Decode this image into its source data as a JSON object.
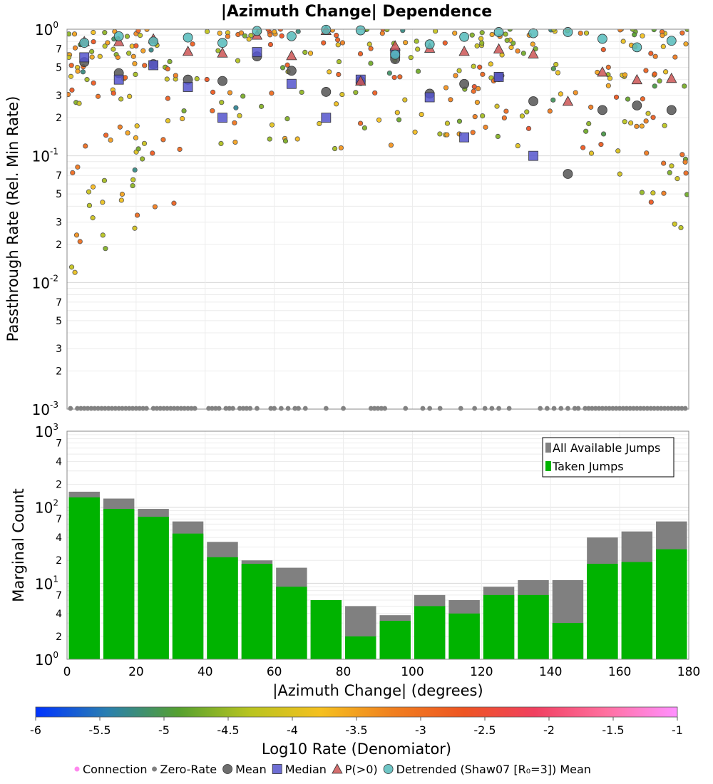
{
  "chart_data": {
    "title": "|Azimuth Change| Dependence",
    "xlabel": "|Azimuth Change| (degrees)",
    "xlim": [
      0,
      180
    ],
    "x_ticks": [
      0,
      20,
      40,
      60,
      80,
      100,
      120,
      140,
      160,
      180
    ],
    "top_panel": {
      "type": "scatter",
      "ylabel": "Passthrough Rate (Rel. Min Rate)",
      "yscale": "log",
      "ylim": [
        0.001,
        1
      ],
      "grid": true,
      "major_tick_labels": [
        {
          "base": "10",
          "exp": "-3"
        },
        {
          "base": "10",
          "exp": "-2"
        },
        {
          "base": "10",
          "exp": "-1"
        },
        {
          "base": "10",
          "exp": "0"
        }
      ],
      "minor_tick_labels": [
        "2",
        "3",
        "5",
        "7"
      ],
      "series": [
        {
          "name": "Mean",
          "color": "#555555",
          "points": [
            [
              5,
              0.55
            ],
            [
              15,
              0.45
            ],
            [
              25,
              0.53
            ],
            [
              35,
              0.4
            ],
            [
              45,
              0.39
            ],
            [
              55,
              0.61
            ],
            [
              65,
              0.47
            ],
            [
              75,
              0.32
            ],
            [
              85,
              0.39
            ],
            [
              95,
              0.58
            ],
            [
              105,
              0.31
            ],
            [
              115,
              0.37
            ],
            [
              125,
              0.42
            ],
            [
              135,
              0.27
            ],
            [
              145,
              0.072
            ],
            [
              155,
              0.23
            ],
            [
              165,
              0.25
            ],
            [
              175,
              0.23
            ]
          ]
        },
        {
          "name": "Median",
          "color": "#5555cc",
          "points": [
            [
              5,
              0.6
            ],
            [
              15,
              0.4
            ],
            [
              25,
              0.52
            ],
            [
              35,
              0.35
            ],
            [
              45,
              0.2
            ],
            [
              55,
              0.66
            ],
            [
              65,
              0.37
            ],
            [
              75,
              0.2
            ],
            [
              85,
              0.4
            ],
            [
              95,
              0.65
            ],
            [
              105,
              0.29
            ],
            [
              115,
              0.14
            ],
            [
              125,
              0.42
            ],
            [
              135,
              0.1
            ]
          ]
        },
        {
          "name": "P(>0)",
          "color": "#cc5555",
          "points": [
            [
              5,
              0.8
            ],
            [
              15,
              0.8
            ],
            [
              25,
              0.84
            ],
            [
              35,
              0.67
            ],
            [
              45,
              0.65
            ],
            [
              55,
              0.9
            ],
            [
              65,
              0.62
            ],
            [
              75,
              0.98
            ],
            [
              85,
              0.39
            ],
            [
              95,
              0.74
            ],
            [
              105,
              0.71
            ],
            [
              115,
              0.67
            ],
            [
              125,
              0.7
            ],
            [
              135,
              0.64
            ],
            [
              145,
              0.27
            ],
            [
              155,
              0.46
            ],
            [
              165,
              0.4
            ],
            [
              175,
              0.41
            ]
          ]
        },
        {
          "name": "Detrended (Shaw07 [R₀=3]) Mean",
          "color": "#55bbbb",
          "points": [
            [
              5,
              0.78
            ],
            [
              15,
              0.88
            ],
            [
              25,
              0.8
            ],
            [
              35,
              0.86
            ],
            [
              45,
              0.78
            ],
            [
              55,
              0.97
            ],
            [
              65,
              0.88
            ],
            [
              75,
              0.99
            ],
            [
              85,
              0.98
            ],
            [
              95,
              0.63
            ],
            [
              105,
              0.76
            ],
            [
              115,
              0.87
            ],
            [
              125,
              0.95
            ],
            [
              135,
              0.93
            ],
            [
              145,
              0.95
            ],
            [
              155,
              0.84
            ],
            [
              165,
              0.72
            ],
            [
              175,
              0.81
            ]
          ]
        }
      ],
      "zero_rate_label": "Zero-Rate",
      "zero_rate_x": [
        1,
        3,
        4,
        5,
        6,
        7,
        8,
        9,
        10,
        11,
        12,
        13,
        14,
        15,
        16,
        17,
        18,
        19,
        20,
        21,
        22,
        23,
        25,
        26,
        27,
        28,
        29,
        30,
        31,
        32,
        33,
        34,
        35,
        36,
        37,
        41,
        42,
        43,
        44,
        46,
        47,
        48,
        50,
        51,
        52,
        53,
        55,
        59,
        60,
        62,
        64,
        66,
        67,
        69,
        75,
        80,
        88,
        89,
        90,
        91,
        92,
        98,
        103,
        105,
        108,
        114,
        118,
        121,
        123,
        125,
        128,
        137,
        139,
        141,
        143,
        145,
        147,
        148,
        150,
        151,
        152,
        153,
        154,
        155,
        156,
        157,
        158,
        159,
        160,
        161,
        162,
        163,
        164,
        165,
        166,
        167,
        168,
        169,
        170,
        171,
        172,
        173,
        174,
        175,
        176,
        177,
        178,
        179
      ],
      "connection_label": "Connection"
    },
    "bottom_panel": {
      "type": "bar",
      "ylabel": "Marginal Count",
      "yscale": "log",
      "ylim": [
        1,
        1000
      ],
      "grid": true,
      "major_tick_labels": [
        {
          "base": "10",
          "exp": "0"
        },
        {
          "base": "10",
          "exp": "1"
        },
        {
          "base": "10",
          "exp": "2"
        },
        {
          "base": "10",
          "exp": "3"
        }
      ],
      "minor_tick_labels": [
        "2",
        "4",
        "7"
      ],
      "bin_width": 10,
      "bin_centers": [
        5,
        15,
        25,
        35,
        45,
        55,
        65,
        75,
        85,
        95,
        105,
        115,
        125,
        135,
        145,
        155,
        165,
        175
      ],
      "series": [
        {
          "name": "All Available Jumps",
          "color": "#808080",
          "values": [
            160,
            130,
            95,
            65,
            35,
            20,
            16,
            6,
            5,
            3.8,
            7,
            6,
            9,
            11,
            11,
            40,
            48,
            65
          ]
        },
        {
          "name": "Taken Jumps",
          "color": "#00b300",
          "values": [
            135,
            95,
            75,
            45,
            22,
            18,
            9,
            6,
            2,
            3.2,
            5,
            4,
            7,
            7,
            3,
            18,
            19,
            28
          ]
        }
      ],
      "legend_position": "top-right"
    },
    "colorbar": {
      "label": "Log10 Rate (Denomiator)",
      "range": [
        -6,
        -1
      ],
      "tick_labels": [
        "-6",
        "-5.5",
        "-5",
        "-4.5",
        "-4",
        "-3.5",
        "-3",
        "-2.5",
        "-2",
        "-1.5",
        "-1"
      ],
      "colors": [
        "#0033ff",
        "#2a7fb0",
        "#55a030",
        "#b8c420",
        "#f5c020",
        "#f08020",
        "#ee5522",
        "#f04060",
        "#ff70a0",
        "#ff90ff"
      ]
    },
    "legend": [
      {
        "name": "Connection",
        "marker": "dot-small",
        "color": "#ff88ee"
      },
      {
        "name": "Zero-Rate",
        "marker": "dot-small",
        "color": "#808080"
      },
      {
        "name": "Mean",
        "marker": "circle",
        "color": "#555555"
      },
      {
        "name": "Median",
        "marker": "square",
        "color": "#5555cc"
      },
      {
        "name": "P(>0)",
        "marker": "triangle",
        "color": "#cc5555"
      },
      {
        "name": "Detrended (Shaw07 [R₀=3]) Mean",
        "marker": "circle",
        "color": "#55bbbb"
      }
    ]
  }
}
